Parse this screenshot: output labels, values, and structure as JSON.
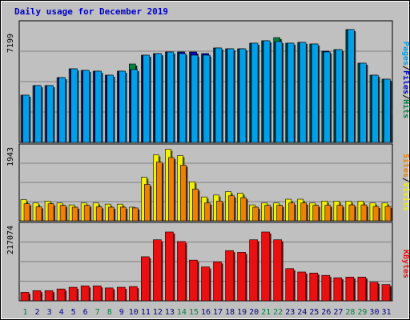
{
  "title": "Daily usage for December 2019",
  "colors": {
    "background": "#c0c0c0",
    "panel": "#c0c0c0",
    "border": "#000000",
    "title": "#0000cc",
    "hits": "#008040",
    "files": "#0000c0",
    "pages": "#00a0e8",
    "visits": "#f0f000",
    "sites": "#f08000",
    "kbytes": "#e81010",
    "weekend_day": "#008040",
    "weekday": "#000080"
  },
  "legend": {
    "top": [
      "Pages",
      "/",
      "Files",
      "/",
      "Hits"
    ],
    "middle": [
      "Sites",
      "/",
      "Visits"
    ],
    "bottom": [
      "KBytes"
    ]
  },
  "chart_data": [
    {
      "type": "bar",
      "title": "Daily usage for December 2019",
      "categories": [
        "1",
        "2",
        "3",
        "4",
        "5",
        "6",
        "7",
        "8",
        "9",
        "10",
        "11",
        "12",
        "13",
        "14",
        "15",
        "16",
        "17",
        "18",
        "19",
        "20",
        "21",
        "22",
        "23",
        "24",
        "25",
        "26",
        "27",
        "28",
        "29",
        "30",
        "31"
      ],
      "y_max_label": "7199",
      "ylim": [
        0,
        7199
      ],
      "series": [
        {
          "name": "Hits",
          "values": [
            2950,
            3550,
            3550,
            4050,
            4600,
            4500,
            4450,
            4200,
            4450,
            4900,
            5450,
            5550,
            5650,
            5650,
            5650,
            5550,
            5900,
            5850,
            5850,
            6200,
            6350,
            6550,
            6200,
            6250,
            6150,
            5700,
            5800,
            7050,
            4950,
            4200,
            3950
          ]
        },
        {
          "name": "Files",
          "values": [
            2950,
            3550,
            3550,
            4050,
            4600,
            4500,
            4450,
            4200,
            4450,
            4550,
            5450,
            5550,
            5650,
            5650,
            5650,
            5550,
            5900,
            5850,
            5850,
            6200,
            6350,
            6300,
            6200,
            6250,
            6150,
            5700,
            5800,
            7050,
            4950,
            4200,
            3950
          ]
        },
        {
          "name": "Pages",
          "values": [
            2950,
            3550,
            3550,
            4050,
            4600,
            4500,
            4450,
            4200,
            4450,
            4550,
            5450,
            5550,
            5650,
            5550,
            5450,
            5450,
            5900,
            5850,
            5850,
            6200,
            6350,
            6300,
            6200,
            6250,
            6150,
            5650,
            5800,
            7050,
            4950,
            4200,
            3950
          ]
        }
      ],
      "grid": true
    },
    {
      "type": "bar",
      "categories": [
        "1",
        "2",
        "3",
        "4",
        "5",
        "6",
        "7",
        "8",
        "9",
        "10",
        "11",
        "12",
        "13",
        "14",
        "15",
        "16",
        "17",
        "18",
        "19",
        "20",
        "21",
        "22",
        "23",
        "24",
        "25",
        "26",
        "27",
        "28",
        "29",
        "30",
        "31"
      ],
      "y_max_label": "1943",
      "ylim": [
        0,
        1943
      ],
      "series": [
        {
          "name": "Visits",
          "values": [
            560,
            470,
            520,
            470,
            420,
            470,
            470,
            440,
            440,
            360,
            1150,
            1740,
            1890,
            1720,
            1030,
            630,
            680,
            770,
            730,
            420,
            470,
            470,
            570,
            570,
            470,
            520,
            520,
            520,
            520,
            470,
            470
          ]
        },
        {
          "name": "Sites",
          "values": [
            450,
            370,
            450,
            410,
            360,
            410,
            370,
            360,
            360,
            340,
            960,
            1550,
            1670,
            1470,
            840,
            470,
            520,
            660,
            610,
            360,
            410,
            410,
            470,
            470,
            410,
            410,
            410,
            420,
            420,
            380,
            380
          ]
        }
      ],
      "grid": true
    },
    {
      "type": "bar",
      "categories": [
        "1",
        "2",
        "3",
        "4",
        "5",
        "6",
        "7",
        "8",
        "9",
        "10",
        "11",
        "12",
        "13",
        "14",
        "15",
        "16",
        "17",
        "18",
        "19",
        "20",
        "21",
        "22",
        "23",
        "24",
        "25",
        "26",
        "27",
        "28",
        "29",
        "30",
        "31"
      ],
      "y_max_label": "217074",
      "ylim": [
        0,
        217074
      ],
      "series": [
        {
          "name": "KBytes",
          "values": [
            25000,
            30000,
            30000,
            35000,
            40000,
            44000,
            44000,
            38000,
            40000,
            42000,
            130000,
            180000,
            203000,
            175000,
            120000,
            100000,
            115000,
            148000,
            143000,
            180000,
            203000,
            180000,
            95000,
            85000,
            82000,
            75000,
            68000,
            70000,
            70000,
            55000,
            48000
          ]
        }
      ],
      "grid": true
    }
  ],
  "weekend_days": [
    "1",
    "7",
    "8",
    "14",
    "15",
    "21",
    "22",
    "28",
    "29"
  ]
}
